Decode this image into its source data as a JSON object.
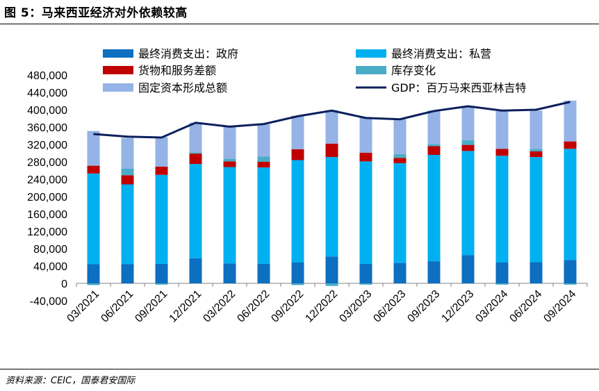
{
  "figure": {
    "title": "图 5：马来西亚经济对外依赖较高",
    "source": "资料来源：CEIC，国泰君安国际"
  },
  "chart_data": {
    "type": "bar",
    "stacked": true,
    "categories": [
      "03/2021",
      "06/2021",
      "09/2021",
      "12/2021",
      "03/2022",
      "06/2022",
      "09/2022",
      "12/2022",
      "03/2023",
      "06/2023",
      "09/2023",
      "12/2023",
      "03/2024",
      "06/2024",
      "09/2024"
    ],
    "series": [
      {
        "name": "最终消费支出：政府",
        "color": "#0C6FC0",
        "values": [
          44000,
          44000,
          45000,
          58000,
          46000,
          45000,
          48000,
          62000,
          45000,
          47000,
          51000,
          65000,
          48000,
          49000,
          54000
        ]
      },
      {
        "name": "最终消费支出：私营",
        "color": "#00B0F0",
        "values": [
          209000,
          184000,
          205000,
          217000,
          222000,
          222000,
          236000,
          229000,
          236000,
          230000,
          245000,
          240000,
          246000,
          242000,
          256000
        ]
      },
      {
        "name": "货物和服务差额",
        "color": "#C00000",
        "values": [
          18000,
          21000,
          19000,
          24000,
          13000,
          13000,
          25000,
          31000,
          20000,
          12000,
          20000,
          14000,
          16000,
          13000,
          17000
        ]
      },
      {
        "name": "库存变化",
        "color": "#4BACC6",
        "values": [
          -4000,
          15000,
          -3000,
          3000,
          6000,
          12000,
          -4000,
          -6000,
          -3000,
          9000,
          5000,
          11000,
          -3000,
          6000,
          -3000
        ]
      },
      {
        "name": "固定资本形成总额",
        "color": "#95B3E6",
        "values": [
          80000,
          71000,
          68000,
          68000,
          73000,
          74000,
          77000,
          77000,
          82000,
          80000,
          77000,
          79000,
          87000,
          88000,
          94000
        ]
      }
    ],
    "line": {
      "name": "GDP：百万马来西亚林吉特",
      "color": "#0B1F5C",
      "values": [
        344000,
        338000,
        336000,
        370000,
        361000,
        367000,
        385000,
        398000,
        381000,
        378000,
        397000,
        408000,
        398000,
        400000,
        418000
      ]
    },
    "ylim": [
      -40000,
      480000
    ],
    "yticks": [
      -40000,
      0,
      40000,
      80000,
      120000,
      160000,
      200000,
      240000,
      280000,
      320000,
      360000,
      400000,
      440000,
      480000
    ],
    "ytick_labels": [
      "-40,000",
      "0",
      "40,000",
      "80,000",
      "120,000",
      "160,000",
      "200,000",
      "240,000",
      "280,000",
      "320,000",
      "360,000",
      "400,000",
      "440,000",
      "480,000"
    ],
    "xlabel": "",
    "ylabel": "",
    "legend_position": "top"
  }
}
